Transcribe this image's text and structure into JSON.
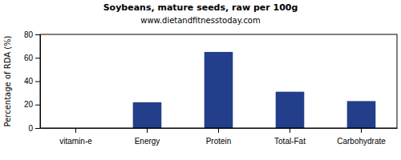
{
  "chart_data": {
    "type": "bar",
    "title": "Soybeans, mature seeds, raw per 100g",
    "subtitle": "www.dietandfitnesstoday.com",
    "y_label": "Percentage of RDA (%)",
    "categories": [
      "vitamin-e",
      "Energy",
      "Protein",
      "Total-Fat",
      "Carbohydrate"
    ],
    "values": [
      0,
      22,
      65,
      31,
      23
    ],
    "color": "#233e8b",
    "ylim": [
      0,
      80
    ],
    "yticks": [
      0,
      20,
      40,
      60,
      80
    ],
    "grid": false
  }
}
